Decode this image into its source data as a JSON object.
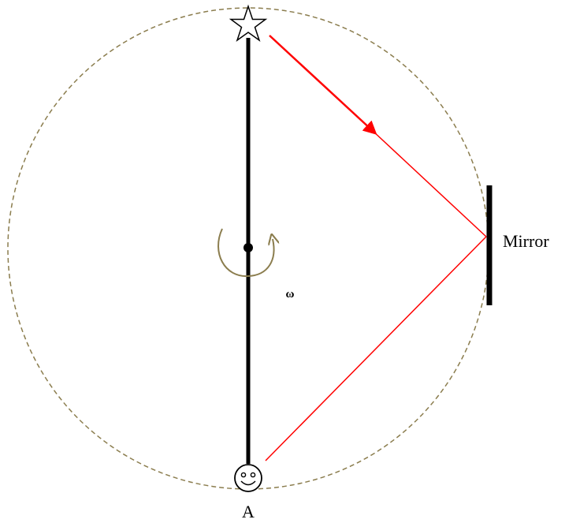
{
  "labels": {
    "mirror": "Mirror",
    "observer": "A",
    "omega": "ω"
  },
  "icons": {
    "source": "star-icon",
    "observer": "smiley-face-icon",
    "rotation": "rotation-arrow-icon"
  },
  "colors": {
    "rod": "#000000",
    "light_ray": "#ff0000",
    "orbit": "#8b7d4e",
    "rotation_arrow": "#8b7d4e",
    "mirror": "#000000"
  }
}
